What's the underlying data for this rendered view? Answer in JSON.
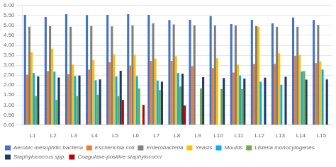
{
  "chart_data": {
    "type": "bar",
    "categories": [
      "L1",
      "L2",
      "L3",
      "L4",
      "L5",
      "L6",
      "L7",
      "L8",
      "L9",
      "L10",
      "L11",
      "L12",
      "L13",
      "L14",
      "L15"
    ],
    "series": [
      {
        "name": "Aerobic mesophilic bacteria",
        "color": "#4472C4",
        "values": [
          5.53,
          5.42,
          5.57,
          5.52,
          5.53,
          5.57,
          5.53,
          5.27,
          5.28,
          5.47,
          5.07,
          5.28,
          5.1,
          5.4,
          5.27
        ]
      },
      {
        "name": "Escherichia coli",
        "color": "#ED7D31",
        "values": [
          2.52,
          2.7,
          2.54,
          2.78,
          3.15,
          2.98,
          3.21,
          3.22,
          2.95,
          2.85,
          2.63,
          3.07,
          3.07,
          3.47,
          3.1
        ]
      },
      {
        "name": "Enterobacteria",
        "color": "#7F7F7F",
        "values": [
          4.93,
          4.97,
          4.93,
          4.97,
          4.95,
          5.0,
          5.1,
          5.05,
          5.0,
          5.0,
          5.0,
          4.97,
          4.93,
          4.93,
          5.02
        ]
      },
      {
        "name": "Yeasts",
        "color": "#FFC000",
        "values": [
          3.65,
          3.83,
          3.03,
          3.25,
          3.55,
          3.52,
          3.33,
          3.45,
          0.0,
          3.35,
          3.03,
          4.93,
          3.6,
          3.52,
          3.18
        ]
      },
      {
        "name": "Moulds",
        "color": "#00B0F0",
        "values": [
          2.6,
          2.67,
          2.45,
          2.25,
          2.43,
          2.45,
          2.23,
          2.6,
          0.0,
          0.0,
          2.48,
          2.17,
          2.02,
          2.68,
          2.78
        ]
      },
      {
        "name": "Listeria monocytogenes",
        "color": "#70AD47",
        "values": [
          1.45,
          1.25,
          1.45,
          1.52,
          1.45,
          1.83,
          1.75,
          1.93,
          1.83,
          1.8,
          1.8,
          0.0,
          0.0,
          2.7,
          0.0
        ]
      },
      {
        "name": "Staphylococcus spp.",
        "color": "#1F3864",
        "values": [
          2.43,
          2.38,
          2.48,
          2.28,
          2.72,
          0.0,
          2.17,
          2.57,
          2.4,
          2.35,
          2.33,
          2.37,
          2.42,
          2.27,
          2.28
        ]
      },
      {
        "name": "Coagulase-positive staphylococci",
        "color": "#C00000",
        "values": [
          0.0,
          0.0,
          0.0,
          0.0,
          1.25,
          1.0,
          0.0,
          0.97,
          0.0,
          0.0,
          0.0,
          0.0,
          0.0,
          0.0,
          0.0
        ]
      }
    ],
    "ylim": [
      0.0,
      6.0
    ],
    "yticks": [
      {
        "value": 0,
        "label": "0.00"
      },
      {
        "value": 0.5,
        "label": "0.50"
      },
      {
        "value": 1,
        "label": "1.00"
      },
      {
        "value": 1.5,
        "label": "1.50"
      },
      {
        "value": 2,
        "label": "2.00"
      },
      {
        "value": 2.5,
        "label": "2.50"
      },
      {
        "value": 3,
        "label": "3.00"
      },
      {
        "value": 3.5,
        "label": "3.50"
      },
      {
        "value": 4,
        "label": "4.00"
      },
      {
        "value": 4.5,
        "label": "4.50"
      },
      {
        "value": 5,
        "label": "5.00"
      },
      {
        "value": 5.5,
        "label": "5.50"
      },
      {
        "value": 6,
        "label": "6.00"
      }
    ],
    "grid": true,
    "legend": "bottom"
  }
}
